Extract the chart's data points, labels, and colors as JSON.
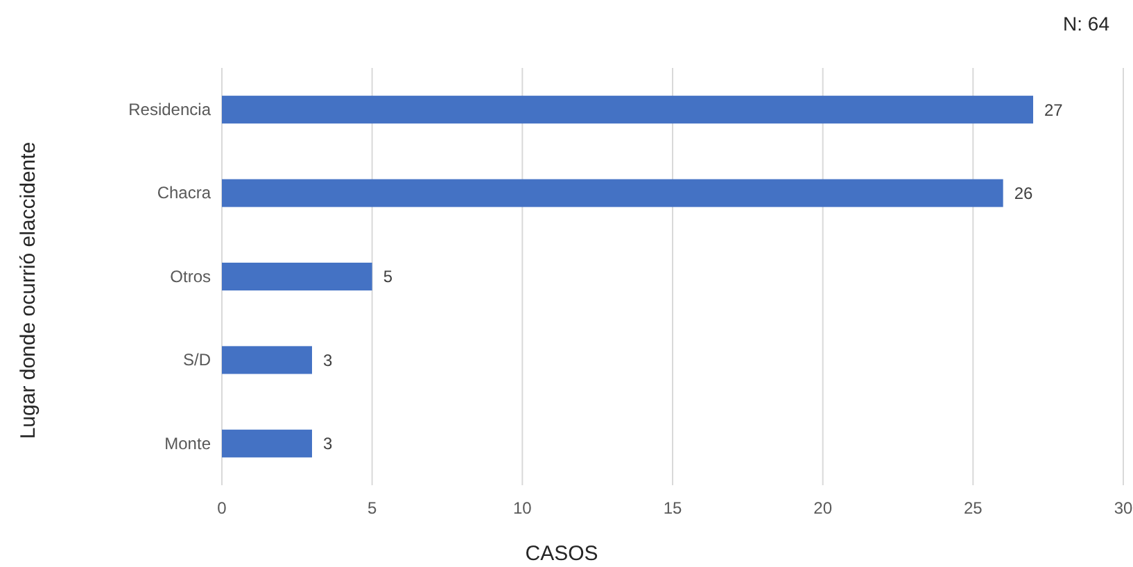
{
  "chart_data": {
    "type": "bar",
    "orientation": "horizontal",
    "categories": [
      "Residencia",
      "Chacra",
      "Otros",
      "S/D",
      "Monte"
    ],
    "values": [
      27,
      26,
      5,
      3,
      3
    ],
    "color": "#4472c4",
    "xlim": [
      0,
      30
    ],
    "xticks": [
      0,
      5,
      10,
      15,
      20,
      25,
      30
    ],
    "grid": "x",
    "data_labels": true,
    "xlabel": "CASOS",
    "ylabel": "Lugar donde ocurrió elaccidente",
    "annotations": [
      "N: 64"
    ]
  }
}
